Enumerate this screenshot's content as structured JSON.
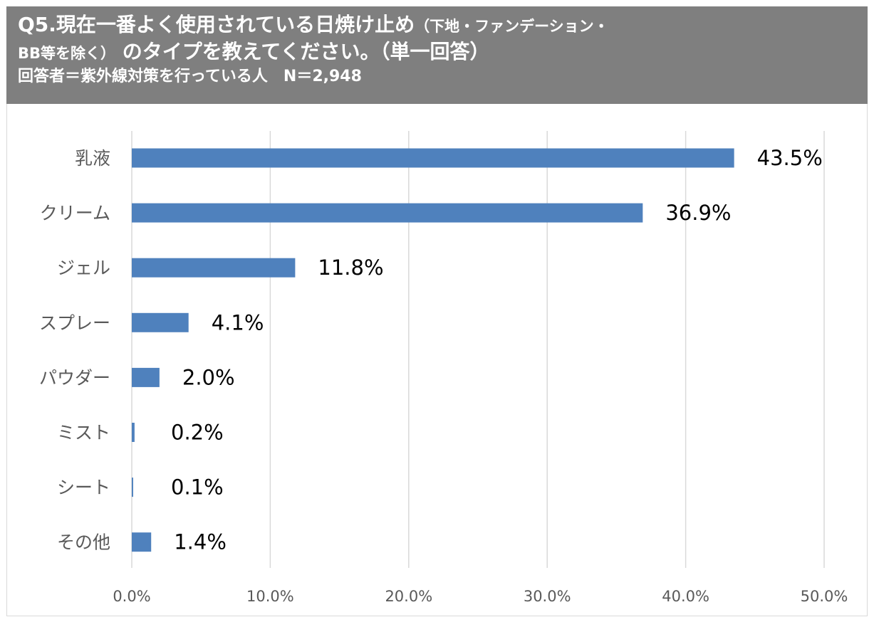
{
  "header": {
    "title_main": "Q5.現在一番よく使用されている日焼け止め",
    "title_paren": "（下地・ファンデーション・",
    "title_line2_small": "BB等を除く）",
    "title_line2_main": "のタイプを教えてください。（単一回答）",
    "respondents": "回答者＝紫外線対策を行っている人　N＝2,948"
  },
  "chart_data": {
    "type": "bar",
    "orientation": "horizontal",
    "categories": [
      "乳液",
      "クリーム",
      "ジェル",
      "スプレー",
      "パウダー",
      "ミスト",
      "シート",
      "その他"
    ],
    "values": [
      43.5,
      36.9,
      11.8,
      4.1,
      2.0,
      0.2,
      0.1,
      1.4
    ],
    "value_labels": [
      "43.5%",
      "36.9%",
      "11.8%",
      "4.1%",
      "2.0%",
      "0.2%",
      "0.1%",
      "1.4%"
    ],
    "xlim": [
      0,
      50
    ],
    "xticks": [
      0,
      10,
      20,
      30,
      40,
      50
    ],
    "xtick_labels": [
      "0.0%",
      "10.0%",
      "20.0%",
      "30.0%",
      "40.0%",
      "50.0%"
    ],
    "bar_color": "#4f81bd",
    "grid_color": "#d9d9d9",
    "grid": true,
    "legend": false
  }
}
